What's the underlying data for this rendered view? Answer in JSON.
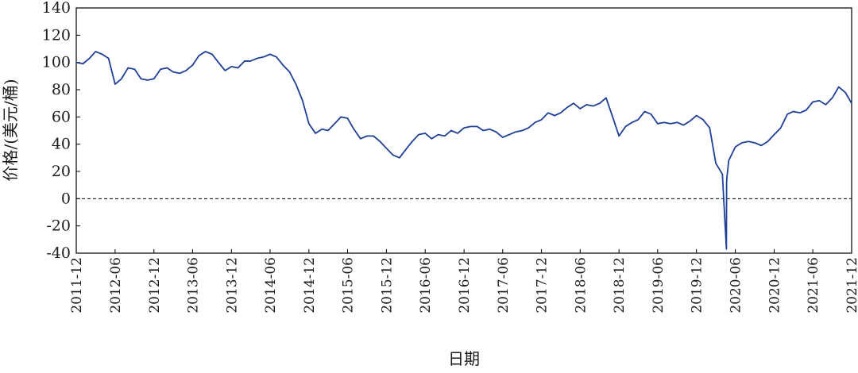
{
  "chart_data": {
    "type": "line",
    "title": "",
    "xlabel": "日期",
    "ylabel": "价格/(美元/桶)",
    "ylim": [
      -40,
      140
    ],
    "yticks": [
      "140",
      "120",
      "100",
      "80",
      "60",
      "40",
      "20",
      "0",
      "-20",
      "-40"
    ],
    "xticks": [
      "2011-12",
      "2012-06",
      "2012-12",
      "2013-06",
      "2013-12",
      "2014-06",
      "2014-12",
      "2015-06",
      "2015-12",
      "2016-06",
      "2016-12",
      "2017-06",
      "2017-12",
      "2018-06",
      "2018-12",
      "2019-06",
      "2019-12",
      "2020-06",
      "2020-12",
      "2021-06",
      "2021-12"
    ],
    "reference_line": {
      "y": 0,
      "style": "dashed"
    },
    "line_color": "#1f3f99",
    "grid": false,
    "legend": "none",
    "series": [
      {
        "x": [
          "2011-12-01",
          "2012-01-01",
          "2012-02-01",
          "2012-03-01",
          "2012-04-01",
          "2012-05-01",
          "2012-06-01",
          "2012-07-01",
          "2012-08-01",
          "2012-09-01",
          "2012-10-01",
          "2012-11-01",
          "2012-12-01",
          "2013-01-01",
          "2013-02-01",
          "2013-03-01",
          "2013-04-01",
          "2013-05-01",
          "2013-06-01",
          "2013-07-01",
          "2013-08-01",
          "2013-09-01",
          "2013-10-01",
          "2013-11-01",
          "2013-12-01",
          "2014-01-01",
          "2014-02-01",
          "2014-03-01",
          "2014-04-01",
          "2014-05-01",
          "2014-06-01",
          "2014-07-01",
          "2014-08-01",
          "2014-09-01",
          "2014-10-01",
          "2014-11-01",
          "2014-12-01",
          "2015-01-01",
          "2015-02-01",
          "2015-03-01",
          "2015-04-01",
          "2015-05-01",
          "2015-06-01",
          "2015-07-01",
          "2015-08-01",
          "2015-09-01",
          "2015-10-01",
          "2015-11-01",
          "2015-12-01",
          "2016-01-01",
          "2016-02-01",
          "2016-03-01",
          "2016-04-01",
          "2016-05-01",
          "2016-06-01",
          "2016-07-01",
          "2016-08-01",
          "2016-09-01",
          "2016-10-01",
          "2016-11-01",
          "2016-12-01",
          "2017-01-01",
          "2017-02-01",
          "2017-03-01",
          "2017-04-01",
          "2017-05-01",
          "2017-06-01",
          "2017-07-01",
          "2017-08-01",
          "2017-09-01",
          "2017-10-01",
          "2017-11-01",
          "2017-12-01",
          "2018-01-01",
          "2018-02-01",
          "2018-03-01",
          "2018-04-01",
          "2018-05-01",
          "2018-06-01",
          "2018-07-01",
          "2018-08-01",
          "2018-09-01",
          "2018-10-01",
          "2018-11-01",
          "2018-12-01",
          "2019-01-01",
          "2019-02-01",
          "2019-03-01",
          "2019-04-01",
          "2019-05-01",
          "2019-06-01",
          "2019-07-01",
          "2019-08-01",
          "2019-09-01",
          "2019-10-01",
          "2019-11-01",
          "2019-12-01",
          "2020-01-01",
          "2020-02-01",
          "2020-03-01",
          "2020-04-01",
          "2020-04-20",
          "2020-04-21",
          "2020-04-22",
          "2020-05-01",
          "2020-06-01",
          "2020-07-01",
          "2020-08-01",
          "2020-09-01",
          "2020-10-01",
          "2020-11-01",
          "2020-12-01",
          "2021-01-01",
          "2021-02-01",
          "2021-03-01",
          "2021-04-01",
          "2021-05-01",
          "2021-06-01",
          "2021-07-01",
          "2021-08-01",
          "2021-09-01",
          "2021-10-01",
          "2021-11-01",
          "2021-12-01"
        ],
        "values": [
          100,
          99,
          103,
          108,
          106,
          103,
          84,
          88,
          96,
          95,
          88,
          87,
          88,
          95,
          96,
          93,
          92,
          94,
          98,
          105,
          108,
          106,
          100,
          94,
          97,
          96,
          101,
          101,
          103,
          104,
          106,
          104,
          98,
          93,
          84,
          72,
          55,
          48,
          51,
          50,
          55,
          60,
          59,
          51,
          44,
          46,
          46,
          42,
          37,
          32,
          30,
          36,
          42,
          47,
          48,
          44,
          47,
          46,
          50,
          48,
          52,
          53,
          53,
          50,
          51,
          49,
          45,
          47,
          49,
          50,
          52,
          56,
          58,
          63,
          61,
          63,
          67,
          70,
          66,
          69,
          68,
          70,
          74,
          60,
          46,
          53,
          56,
          58,
          64,
          62,
          55,
          56,
          55,
          56,
          54,
          57,
          61,
          58,
          52,
          26,
          18,
          -37,
          12,
          15,
          28,
          38,
          41,
          42,
          41,
          39,
          42,
          47,
          52,
          62,
          64,
          63,
          65,
          71,
          72,
          69,
          74,
          82,
          78,
          70
        ]
      }
    ]
  }
}
